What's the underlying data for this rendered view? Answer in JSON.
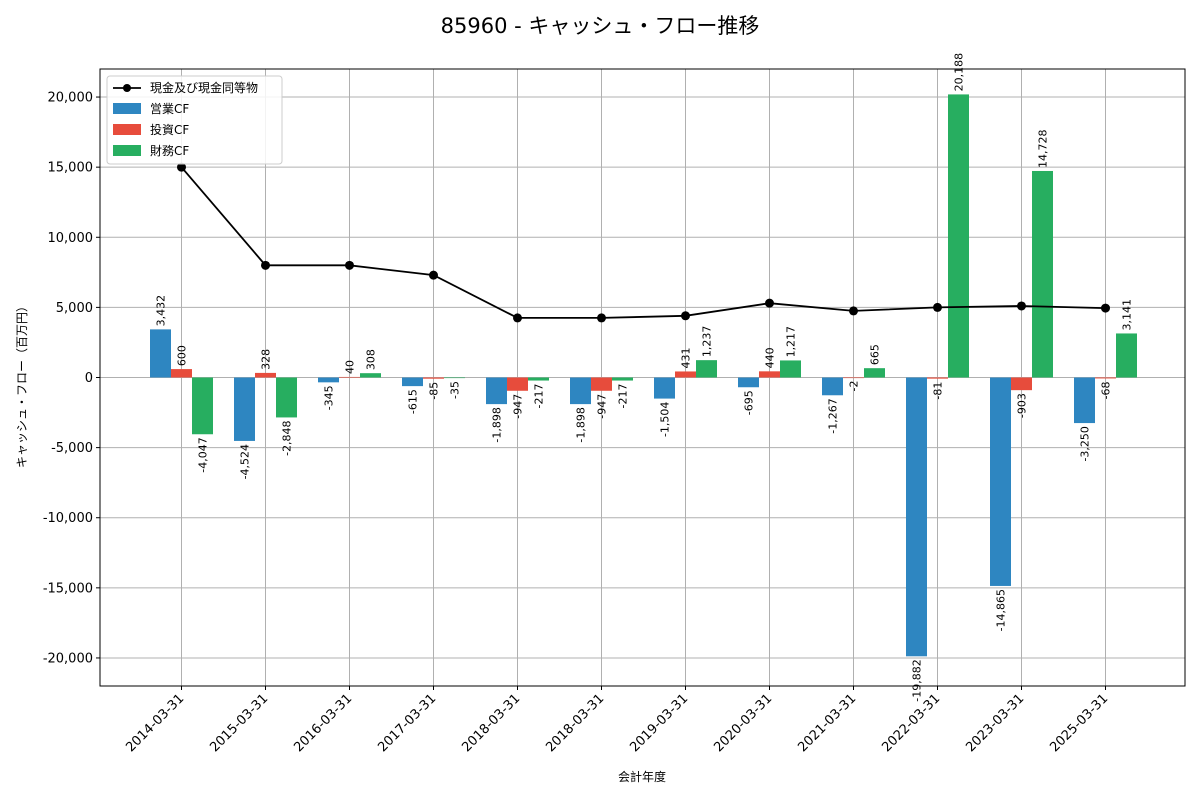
{
  "chart_data": {
    "type": "bar",
    "title": "85960 - キャッシュ・フロー推移",
    "xlabel": "会計年度",
    "ylabel": "キャッシュ・フロー（百万円）",
    "ylim": [
      -22000,
      22000
    ],
    "yticks": [
      -20000,
      -15000,
      -10000,
      -5000,
      0,
      5000,
      10000,
      15000,
      20000
    ],
    "ytick_labels": [
      "-20,000",
      "-15,000",
      "-10,000",
      "-5,000",
      "0",
      "5,000",
      "10,000",
      "15,000",
      "20,000"
    ],
    "grid": true,
    "legend_position": "top-left",
    "categories": [
      "2014-03-31",
      "2015-03-31",
      "2016-03-31",
      "2017-03-31",
      "2018-03-31",
      "2018-03-31",
      "2019-03-31",
      "2020-03-31",
      "2021-03-31",
      "2022-03-31",
      "2023-03-31",
      "2025-03-31"
    ],
    "series": [
      {
        "name": "営業CF",
        "color": "#2e86c1",
        "values": [
          3432,
          -4524,
          -345,
          -615,
          -1898,
          -1898,
          -1504,
          -695,
          -1267,
          -19882,
          -14865,
          -3250
        ],
        "labels": [
          "3,432",
          "-4,524",
          "-345",
          "-615",
          "-1,898",
          "-1,898",
          "-1,504",
          "-695",
          "-1,267",
          "-19,882",
          "-14,865",
          "-3,250"
        ]
      },
      {
        "name": "投資CF",
        "color": "#e74c3c",
        "values": [
          600,
          328,
          40,
          -85,
          -947,
          -947,
          431,
          440,
          -2,
          -81,
          -903,
          -68
        ],
        "labels": [
          "600",
          "328",
          "40",
          "-85",
          "-947",
          "-947",
          "431",
          "440",
          "-2",
          "-81",
          "-903",
          "-68"
        ]
      },
      {
        "name": "財務CF",
        "color": "#27ae60",
        "values": [
          -4047,
          -2848,
          308,
          -35,
          -217,
          -217,
          1237,
          1217,
          665,
          20188,
          14728,
          3141
        ],
        "labels": [
          "-4,047",
          "-2,848",
          "308",
          "-35",
          "-217",
          "-217",
          "1,237",
          "1,217",
          "665",
          "20,188",
          "14,728",
          "3,141"
        ]
      }
    ],
    "line_series": {
      "name": "現金及び現金同等物",
      "color": "#000000",
      "values": [
        15000,
        8000,
        8000,
        7300,
        4250,
        4250,
        4400,
        5300,
        4750,
        5000,
        5100,
        4950
      ]
    }
  }
}
